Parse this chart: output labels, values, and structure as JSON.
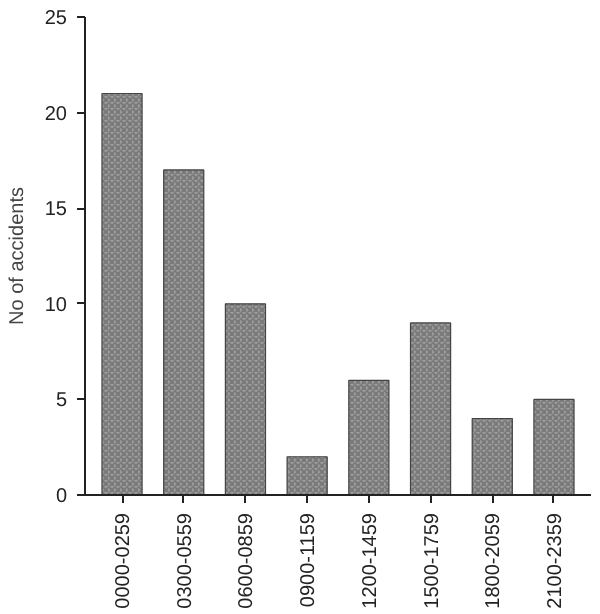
{
  "chart_data": {
    "type": "bar",
    "ylabel": "No of accidents",
    "categories": [
      "0000-0259",
      "0300-0559",
      "0600-0859",
      "0900-1159",
      "1200-1459",
      "1500-1759",
      "1800-2059",
      "2100-2359"
    ],
    "values": [
      21,
      17,
      10,
      2,
      6,
      9,
      4,
      5
    ],
    "color": "#9a9a9a",
    "ylim": [
      0,
      25
    ],
    "yticks": [
      0,
      5,
      10,
      15,
      20,
      25
    ],
    "grid": false
  }
}
